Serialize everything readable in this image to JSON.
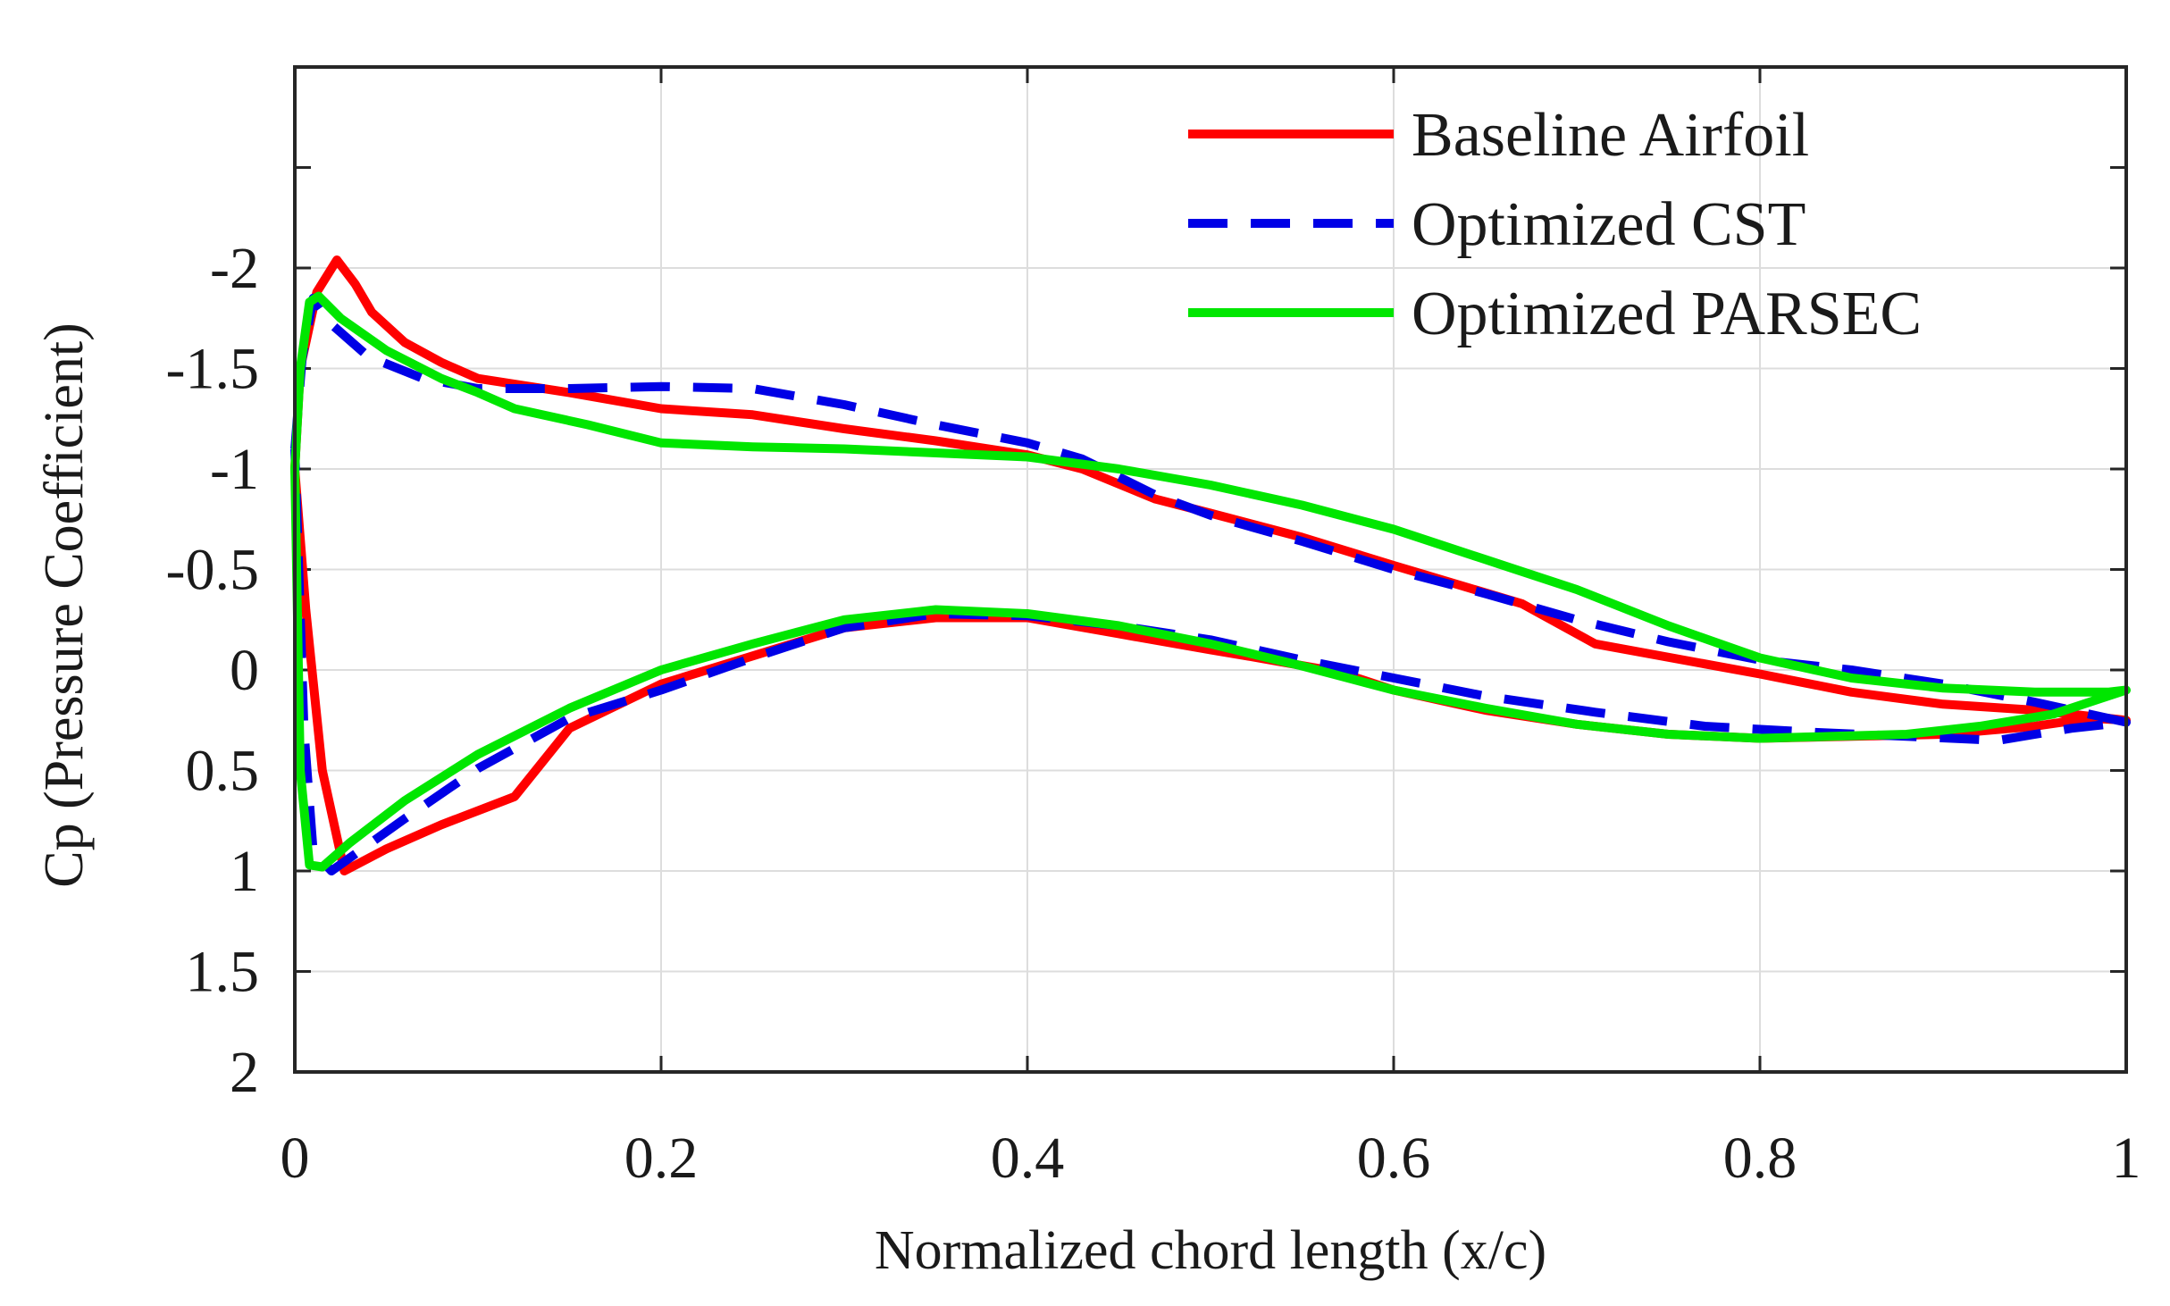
{
  "chart_data": {
    "type": "line",
    "title": "",
    "xlabel": "Normalized chord length (x/c)",
    "ylabel": "Cp (Pressure Coefficient)",
    "xlim": [
      0,
      1
    ],
    "ylim": [
      2,
      -3
    ],
    "y_reversed": true,
    "grid": true,
    "legend_position": "top-right",
    "x_ticks": [
      0,
      0.2,
      0.4,
      0.6,
      0.8,
      1
    ],
    "x_tick_labels": [
      "0",
      "0.2",
      "0.4",
      "0.6",
      "0.8",
      "1"
    ],
    "y_ticks": [
      -2,
      -1.5,
      -1,
      -0.5,
      0,
      0.5,
      1,
      1.5,
      2
    ],
    "y_tick_labels": [
      "-2",
      "-1.5",
      "-1",
      "-0.5",
      "0",
      "0.5",
      "1",
      "1.5",
      "2"
    ],
    "y_minor_ticks": [
      -3,
      -2.5
    ],
    "series": [
      {
        "name": "Baseline Airfoil",
        "color": "#ff0000",
        "style": "solid",
        "points": [
          [
            0.0,
            -1.0
          ],
          [
            0.003,
            -1.5
          ],
          [
            0.012,
            -1.88
          ],
          [
            0.023,
            -2.04
          ],
          [
            0.033,
            -1.92
          ],
          [
            0.042,
            -1.78
          ],
          [
            0.06,
            -1.63
          ],
          [
            0.08,
            -1.53
          ],
          [
            0.1,
            -1.45
          ],
          [
            0.15,
            -1.38
          ],
          [
            0.2,
            -1.3
          ],
          [
            0.25,
            -1.27
          ],
          [
            0.3,
            -1.2
          ],
          [
            0.35,
            -1.14
          ],
          [
            0.4,
            -1.07
          ],
          [
            0.43,
            -1.0
          ],
          [
            0.47,
            -0.85
          ],
          [
            0.5,
            -0.78
          ],
          [
            0.55,
            -0.66
          ],
          [
            0.6,
            -0.52
          ],
          [
            0.67,
            -0.33
          ],
          [
            0.71,
            -0.13
          ],
          [
            0.8,
            0.02
          ],
          [
            0.85,
            0.11
          ],
          [
            0.9,
            0.17
          ],
          [
            0.95,
            0.2
          ],
          [
            1.0,
            0.25
          ],
          [
            0.98,
            0.24
          ],
          [
            0.95,
            0.28
          ],
          [
            0.9,
            0.32
          ],
          [
            0.85,
            0.33
          ],
          [
            0.8,
            0.34
          ],
          [
            0.75,
            0.32
          ],
          [
            0.7,
            0.27
          ],
          [
            0.65,
            0.2
          ],
          [
            0.6,
            0.1
          ],
          [
            0.57,
            0.01
          ],
          [
            0.52,
            -0.07
          ],
          [
            0.5,
            -0.1
          ],
          [
            0.45,
            -0.18
          ],
          [
            0.4,
            -0.26
          ],
          [
            0.35,
            -0.26
          ],
          [
            0.3,
            -0.21
          ],
          [
            0.25,
            -0.07
          ],
          [
            0.2,
            0.07
          ],
          [
            0.15,
            0.29
          ],
          [
            0.12,
            0.63
          ],
          [
            0.08,
            0.77
          ],
          [
            0.05,
            0.89
          ],
          [
            0.027,
            1.0
          ],
          [
            0.015,
            0.5
          ],
          [
            0.006,
            -0.3
          ],
          [
            0.0,
            -1.0
          ]
        ]
      },
      {
        "name": "Optimized CST",
        "color": "#0000e6",
        "style": "dashed",
        "points": [
          [
            0.0,
            -1.1
          ],
          [
            0.004,
            -1.55
          ],
          [
            0.01,
            -1.85
          ],
          [
            0.02,
            -1.72
          ],
          [
            0.04,
            -1.56
          ],
          [
            0.07,
            -1.45
          ],
          [
            0.1,
            -1.4
          ],
          [
            0.15,
            -1.4
          ],
          [
            0.2,
            -1.41
          ],
          [
            0.25,
            -1.4
          ],
          [
            0.3,
            -1.32
          ],
          [
            0.35,
            -1.22
          ],
          [
            0.4,
            -1.13
          ],
          [
            0.43,
            -1.05
          ],
          [
            0.47,
            -0.87
          ],
          [
            0.5,
            -0.77
          ],
          [
            0.55,
            -0.64
          ],
          [
            0.6,
            -0.5
          ],
          [
            0.65,
            -0.38
          ],
          [
            0.7,
            -0.25
          ],
          [
            0.75,
            -0.14
          ],
          [
            0.8,
            -0.05
          ],
          [
            0.85,
            0.0
          ],
          [
            0.9,
            0.07
          ],
          [
            0.95,
            0.16
          ],
          [
            1.0,
            0.26
          ],
          [
            0.97,
            0.29
          ],
          [
            0.93,
            0.35
          ],
          [
            0.88,
            0.33
          ],
          [
            0.83,
            0.31
          ],
          [
            0.77,
            0.28
          ],
          [
            0.71,
            0.21
          ],
          [
            0.65,
            0.13
          ],
          [
            0.6,
            0.04
          ],
          [
            0.55,
            -0.05
          ],
          [
            0.5,
            -0.15
          ],
          [
            0.45,
            -0.22
          ],
          [
            0.4,
            -0.27
          ],
          [
            0.35,
            -0.28
          ],
          [
            0.3,
            -0.21
          ],
          [
            0.25,
            -0.06
          ],
          [
            0.2,
            0.1
          ],
          [
            0.15,
            0.24
          ],
          [
            0.1,
            0.49
          ],
          [
            0.06,
            0.74
          ],
          [
            0.04,
            0.87
          ],
          [
            0.02,
            1.0
          ],
          [
            0.01,
            0.9
          ],
          [
            0.005,
            0.3
          ],
          [
            0.0,
            -1.1
          ]
        ]
      },
      {
        "name": "Optimized PARSEC",
        "color": "#00e600",
        "style": "solid",
        "points": [
          [
            0.0,
            -1.0
          ],
          [
            0.003,
            -1.5
          ],
          [
            0.008,
            -1.83
          ],
          [
            0.013,
            -1.86
          ],
          [
            0.025,
            -1.75
          ],
          [
            0.05,
            -1.59
          ],
          [
            0.08,
            -1.45
          ],
          [
            0.1,
            -1.38
          ],
          [
            0.12,
            -1.3
          ],
          [
            0.16,
            -1.22
          ],
          [
            0.2,
            -1.13
          ],
          [
            0.25,
            -1.11
          ],
          [
            0.3,
            -1.1
          ],
          [
            0.35,
            -1.08
          ],
          [
            0.4,
            -1.06
          ],
          [
            0.45,
            -1.0
          ],
          [
            0.5,
            -0.92
          ],
          [
            0.55,
            -0.82
          ],
          [
            0.6,
            -0.7
          ],
          [
            0.65,
            -0.55
          ],
          [
            0.7,
            -0.4
          ],
          [
            0.75,
            -0.22
          ],
          [
            0.8,
            -0.06
          ],
          [
            0.85,
            0.04
          ],
          [
            0.9,
            0.09
          ],
          [
            0.95,
            0.11
          ],
          [
            0.99,
            0.11
          ],
          [
            1.0,
            0.1
          ],
          [
            0.99,
            0.13
          ],
          [
            0.96,
            0.22
          ],
          [
            0.92,
            0.28
          ],
          [
            0.88,
            0.32
          ],
          [
            0.84,
            0.33
          ],
          [
            0.8,
            0.34
          ],
          [
            0.75,
            0.32
          ],
          [
            0.7,
            0.27
          ],
          [
            0.65,
            0.19
          ],
          [
            0.6,
            0.1
          ],
          [
            0.55,
            -0.02
          ],
          [
            0.5,
            -0.13
          ],
          [
            0.45,
            -0.22
          ],
          [
            0.4,
            -0.28
          ],
          [
            0.35,
            -0.3
          ],
          [
            0.3,
            -0.25
          ],
          [
            0.25,
            -0.13
          ],
          [
            0.2,
            0.0
          ],
          [
            0.15,
            0.19
          ],
          [
            0.1,
            0.42
          ],
          [
            0.06,
            0.65
          ],
          [
            0.03,
            0.86
          ],
          [
            0.015,
            0.98
          ],
          [
            0.008,
            0.97
          ],
          [
            0.003,
            0.5
          ],
          [
            0.0,
            -1.0
          ]
        ]
      }
    ]
  }
}
